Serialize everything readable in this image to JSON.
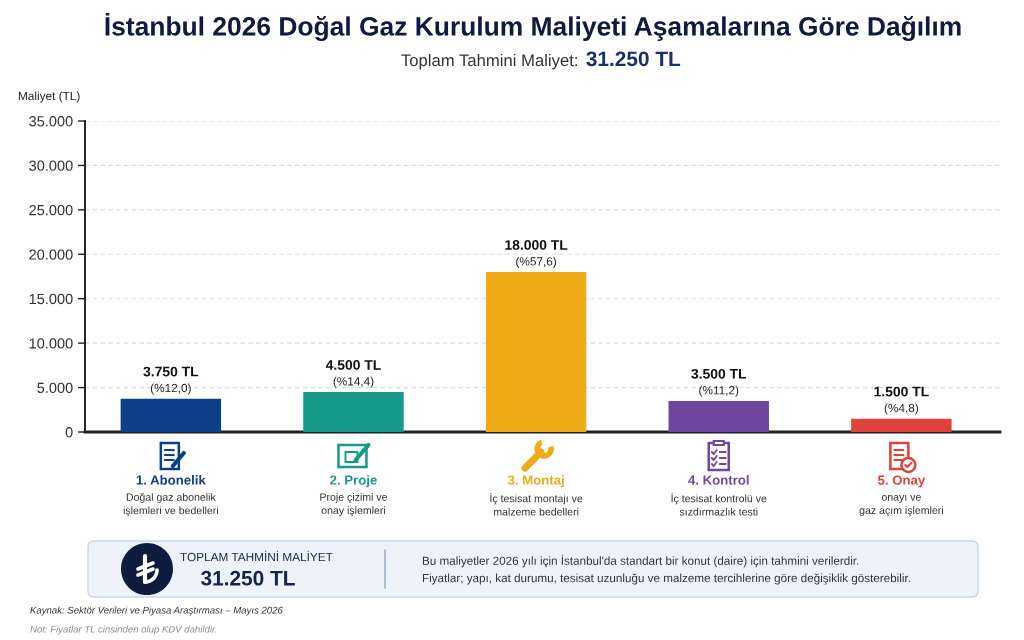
{
  "chart_data": {
    "type": "bar",
    "title": "İstanbul 2026 Doğal Gaz Kurulum Maliyeti Aşamalarına Göre Dağılım",
    "subtitle": "Toplam Tahmini Maliyet: 31.250 TL",
    "ylabel": "Maliyet (TL)",
    "categories": [
      "1. Abonelik\nDoğal gaz abonelik\nişlemleri ve bedelleri",
      "2. Proje\nProje çizimi ve\nonay işlemleri",
      "3. Montaj\nİç tesisat montajı ve\nmalzeme bedelleri",
      "4. Kontrol\nİç tesisat kontrolü ve\nsızdırmazlık testi",
      "5. Onay\nonayı ve\ngaz açım işlemleri"
    ],
    "values": [
      3750,
      4500,
      18000,
      3500,
      1500
    ],
    "colors": [
      "#0d4089",
      "#17998a",
      "#efab17",
      "#6f47a0",
      "#e0413b"
    ],
    "value_labels": [
      "3.750 TL\n(%12,0)",
      "4.500 TL\n(%14,4)",
      "18.000 TL\n(%57,6)",
      "3.500 TL\n(%11,2)",
      "1.500 TL\n(%4,8)"
    ],
    "ylim": [
      0,
      35000
    ],
    "yticks": [
      0,
      {
        "value": 5000,
        "label": "5.000"
      },
      {
        "value": 10000,
        "label": "10.000"
      },
      {
        "value": 15000,
        "label": "15.000"
      },
      {
        "value": 20000,
        "label": "20.000"
      },
      {
        "value": 25000,
        "label": "25.000"
      },
      {
        "value": 30000,
        "label": "30.000"
      },
      {
        "value": 35000,
        "label": "35.000"
      }
    ],
    "grid": "y",
    "annotations": [
      "TOPLAM TAHMİNİ MALİYET",
      "31.250 TL",
      "Bu maliyetler 2026 yılı için İstanbul'da standart bir konut (daire) için tahmini verilerdir.",
      "Fiyatlar; yapı, kat durumu, tesisat uzunluğu ve malzeme tercihlerine göre değişiklik gösterebilir.",
      "Kaynak: Sektör Verileri ve Piyasa Araştırması – Mayıs 2026",
      "Not: Fiyatlar TL cinsinden olup KDV dahildir."
    ]
  }
}
